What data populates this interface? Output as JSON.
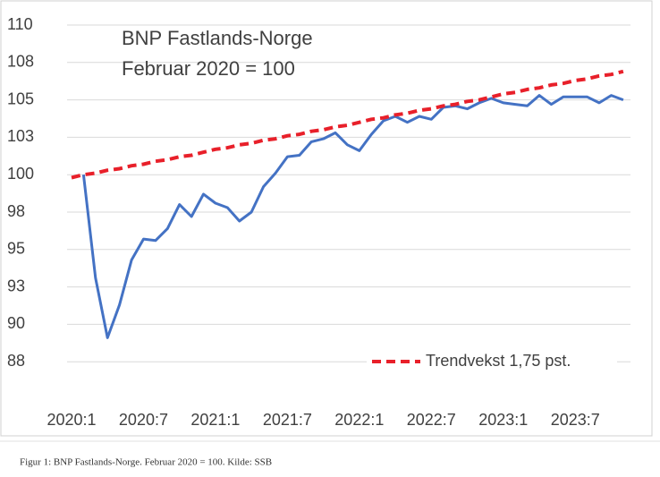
{
  "chart_data": {
    "type": "line",
    "title": "BNP Fastlands-Norge",
    "subtitle": "Februar 2020 = 100",
    "caption": "Figur 1: BNP Fastlands-Norge. Februar 2020 = 100. Kilde: SSB",
    "categories": [
      "2020:1",
      null,
      null,
      null,
      null,
      null,
      "2020:7",
      null,
      null,
      null,
      null,
      null,
      "2021:1",
      null,
      null,
      null,
      null,
      null,
      "2021:7",
      null,
      null,
      null,
      null,
      null,
      "2022:1",
      null,
      null,
      null,
      null,
      null,
      "2022:7",
      null,
      null,
      null,
      null,
      null,
      "2023:1",
      null,
      null,
      null,
      null,
      null,
      "2023:7",
      null,
      null,
      null,
      null
    ],
    "series": [
      {
        "color": "#4472c4",
        "values": [
          null,
          100,
          93.1,
          89.1,
          91.3,
          94.3,
          95.7,
          95.6,
          96.4,
          98.0,
          97.2,
          98.7,
          98.1,
          97.8,
          96.9,
          97.5,
          99.2,
          100.1,
          101.2,
          101.3,
          102.2,
          102.4,
          102.8,
          102.0,
          101.6,
          102.7,
          103.6,
          103.9,
          103.5,
          103.9,
          103.7,
          104.5,
          104.6,
          104.4,
          104.8,
          105.1,
          104.8,
          104.7,
          104.6,
          105.3,
          104.7,
          105.2,
          105.2,
          105.2,
          104.8,
          105.3,
          105.0
        ]
      },
      {
        "name": "Trendvekst 1,75 pst.",
        "color": "#e8202a",
        "dashed": true,
        "values": [
          99.8,
          100.0,
          100.1,
          100.3,
          100.4,
          100.6,
          100.7,
          100.9,
          101.0,
          101.2,
          101.3,
          101.5,
          101.7,
          101.8,
          102.0,
          102.1,
          102.3,
          102.4,
          102.6,
          102.7,
          102.9,
          103.0,
          103.2,
          103.3,
          103.5,
          103.7,
          103.8,
          104.0,
          104.1,
          104.3,
          104.4,
          104.6,
          104.7,
          104.9,
          105.0,
          105.2,
          105.4,
          105.5,
          105.7,
          105.8,
          106.0,
          106.1,
          106.3,
          106.4,
          106.6,
          106.7,
          106.9
        ]
      }
    ],
    "ylim": [
      85,
      110
    ],
    "yticks": [
      {
        "value": 87.5,
        "label": "88"
      },
      90,
      {
        "value": 92.5,
        "label": "93"
      },
      95,
      {
        "value": 97.5,
        "label": "98"
      },
      100,
      {
        "value": 102.5,
        "label": "103"
      },
      105,
      {
        "value": 107.5,
        "label": "108"
      },
      110
    ],
    "grid": true,
    "legend": "lower right"
  }
}
